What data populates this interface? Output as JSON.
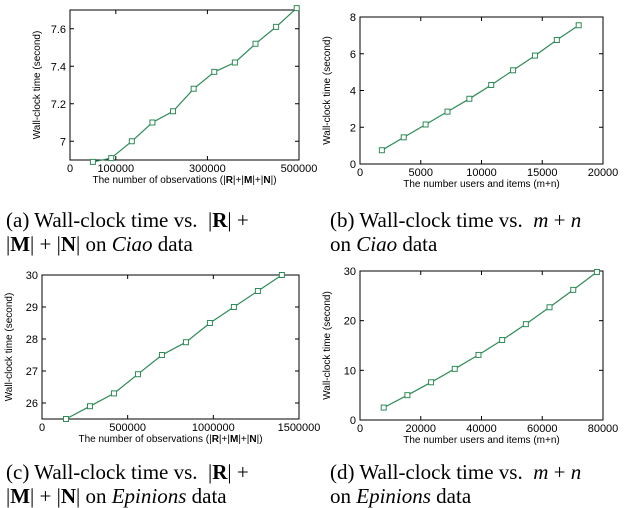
{
  "figure": {
    "panels": [
      {
        "panel_label": "(a)",
        "caption_line1": "Wall-clock time vs. |R| +",
        "caption_line2": "|M| + |N| on Ciao data",
        "chart_data": {
          "type": "line",
          "ylabel": "Wall-clock time (second)",
          "xlabel_text": "The number of observations (|",
          "xlabel_parts": [
            "R",
            "|+|",
            "M",
            "|+|",
            "N",
            "|)"
          ],
          "xlim": [
            0,
            500000
          ],
          "ylim": [
            6.9,
            7.7
          ],
          "xticks": [
            0,
            100000,
            300000,
            500000
          ],
          "xtick_labels": [
            "0",
            "100000",
            "300000",
            "500000"
          ],
          "yticks": [
            7.0,
            7.2,
            7.4,
            7.6
          ],
          "ytick_labels": [
            "7",
            "7.2",
            "7.4",
            "7.6"
          ],
          "grid": false,
          "series": [
            {
              "x": [
                50000,
                90000,
                135000,
                180000,
                225000,
                270000,
                315000,
                360000,
                405000,
                450000,
                495000
              ],
              "y": [
                6.89,
                6.91,
                7.0,
                7.1,
                7.16,
                7.28,
                7.37,
                7.42,
                7.52,
                7.61,
                7.71
              ]
            }
          ]
        }
      },
      {
        "panel_label": "(b)",
        "caption_line1": "Wall-clock time vs. m + n",
        "caption_line2": "on Ciao data",
        "chart_data": {
          "type": "line",
          "ylabel": "Wall-clock time (second)",
          "xlabel": "The number users and items (m+n)",
          "xlim": [
            0,
            20000
          ],
          "ylim": [
            0,
            8
          ],
          "xticks": [
            0,
            5000,
            10000,
            15000,
            20000
          ],
          "xtick_labels": [
            "0",
            "5000",
            "10000",
            "15000",
            "20000"
          ],
          "yticks": [
            0,
            2,
            4,
            6,
            8
          ],
          "ytick_labels": [
            "0",
            "2",
            "4",
            "6",
            "8"
          ],
          "grid": false,
          "series": [
            {
              "x": [
                1800,
                3600,
                5400,
                7200,
                9000,
                10800,
                12600,
                14400,
                16200,
                18000
              ],
              "y": [
                0.75,
                1.45,
                2.15,
                2.85,
                3.55,
                4.3,
                5.1,
                5.9,
                6.75,
                7.55
              ]
            }
          ]
        }
      },
      {
        "panel_label": "(c)",
        "caption_line1": "Wall-clock time vs. |R| +",
        "caption_line2": "|M| + |N| on Epinions data",
        "chart_data": {
          "type": "line",
          "ylabel": "Wall-clock time (second)",
          "xlabel_text": "The number of observations (|",
          "xlabel_parts": [
            "R",
            "|+|",
            "M",
            "|+|",
            "N",
            "|)"
          ],
          "xlim": [
            0,
            1500000
          ],
          "ylim": [
            25.5,
            30
          ],
          "xticks": [
            0,
            500000,
            1000000,
            1500000
          ],
          "xtick_labels": [
            "0",
            "500000",
            "1000000",
            "1500000"
          ],
          "yticks": [
            26,
            27,
            28,
            29,
            30
          ],
          "ytick_labels": [
            "26",
            "27",
            "28",
            "29",
            "30"
          ],
          "grid": false,
          "series": [
            {
              "x": [
                140000,
                280000,
                420000,
                560000,
                700000,
                840000,
                980000,
                1120000,
                1260000,
                1400000
              ],
              "y": [
                25.5,
                25.9,
                26.3,
                26.9,
                27.5,
                27.9,
                28.5,
                29.0,
                29.5,
                30.0
              ]
            }
          ]
        }
      },
      {
        "panel_label": "(d)",
        "caption_line1": "Wall-clock time vs. m + n",
        "caption_line2": "on Epinions data",
        "chart_data": {
          "type": "line",
          "ylabel": "Wall-clock time (second)",
          "xlabel": "The number users and items (m+n)",
          "xlim": [
            0,
            80000
          ],
          "ylim": [
            0,
            30
          ],
          "xticks": [
            0,
            20000,
            40000,
            60000,
            80000
          ],
          "xtick_labels": [
            "0",
            "20000",
            "40000",
            "60000",
            "80000"
          ],
          "yticks": [
            0,
            10,
            20,
            30
          ],
          "ytick_labels": [
            "0",
            "10",
            "20",
            "30"
          ],
          "grid": false,
          "series": [
            {
              "x": [
                7800,
                15600,
                23400,
                31200,
                39000,
                46800,
                54600,
                62400,
                70200,
                78000
              ],
              "y": [
                2.5,
                5.0,
                7.6,
                10.3,
                13.1,
                16.1,
                19.3,
                22.7,
                26.2,
                29.8
              ]
            }
          ]
        }
      }
    ]
  },
  "style": {
    "line_color": "#2e8b57",
    "marker_color": "#2e8b57",
    "axis_color": "#000000"
  }
}
